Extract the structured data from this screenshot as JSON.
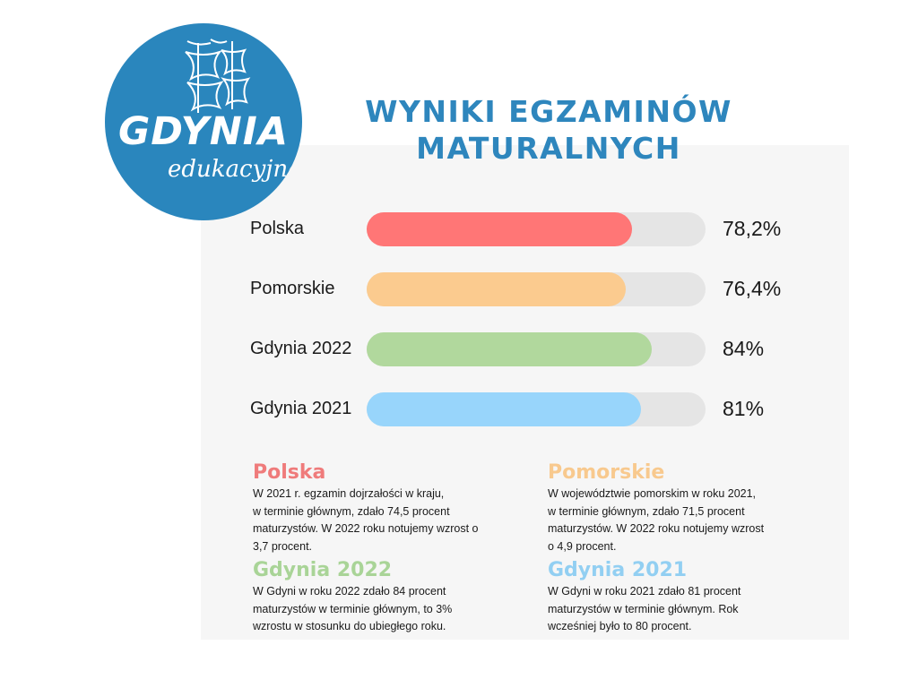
{
  "logo": {
    "main": "GDYNIA",
    "sub": "edukacyjna"
  },
  "title_line1": "WYNIKI EGZAMINÓW",
  "title_line2": "MATURALNYCH",
  "chart_data": {
    "type": "bar",
    "orientation": "horizontal",
    "title": "WYNIKI EGZAMINÓW MATURALNYCH",
    "categories": [
      "Polska",
      "Pomorskie",
      "Gdynia 2022",
      "Gdynia 2021"
    ],
    "values": [
      78.2,
      76.4,
      84,
      81
    ],
    "value_labels": [
      "78,2%",
      "76,4%",
      "84%",
      "81%"
    ],
    "colors": [
      "#ff7676",
      "#fbcb8f",
      "#b1d89d",
      "#98d5fb"
    ],
    "xlim": [
      0,
      100
    ],
    "grid": false
  },
  "notes": [
    {
      "heading": "Polska",
      "color": "#ef7b7b",
      "lines": [
        "W 2021 r. egzamin dojrzałości w kraju,",
        "w terminie głównym, zdało 74,5 procent",
        "maturzystów. W 2022 roku notujemy wzrost o",
        "3,7 procent."
      ]
    },
    {
      "heading": "Pomorskie",
      "color": "#f8c98e",
      "lines": [
        "W województwie pomorskim w roku 2021,",
        "w terminie głównym, zdało 71,5 procent",
        "maturzystów. W 2022 roku notujemy wzrost",
        "o 4,9 procent."
      ]
    },
    {
      "heading": "Gdynia 2022",
      "color": "#a9d497",
      "lines": [
        "W Gdyni w roku 2022 zdało 84 procent",
        "maturzystów w terminie głównym, to 3%",
        "wzrostu w stosunku do ubiegłego roku."
      ]
    },
    {
      "heading": "Gdynia 2021",
      "color": "#92cff2",
      "lines": [
        "W Gdyni w roku 2021 zdało 81 procent",
        "maturzystów w terminie głównym. Rok",
        "wcześniej było to 80 procent."
      ]
    }
  ]
}
